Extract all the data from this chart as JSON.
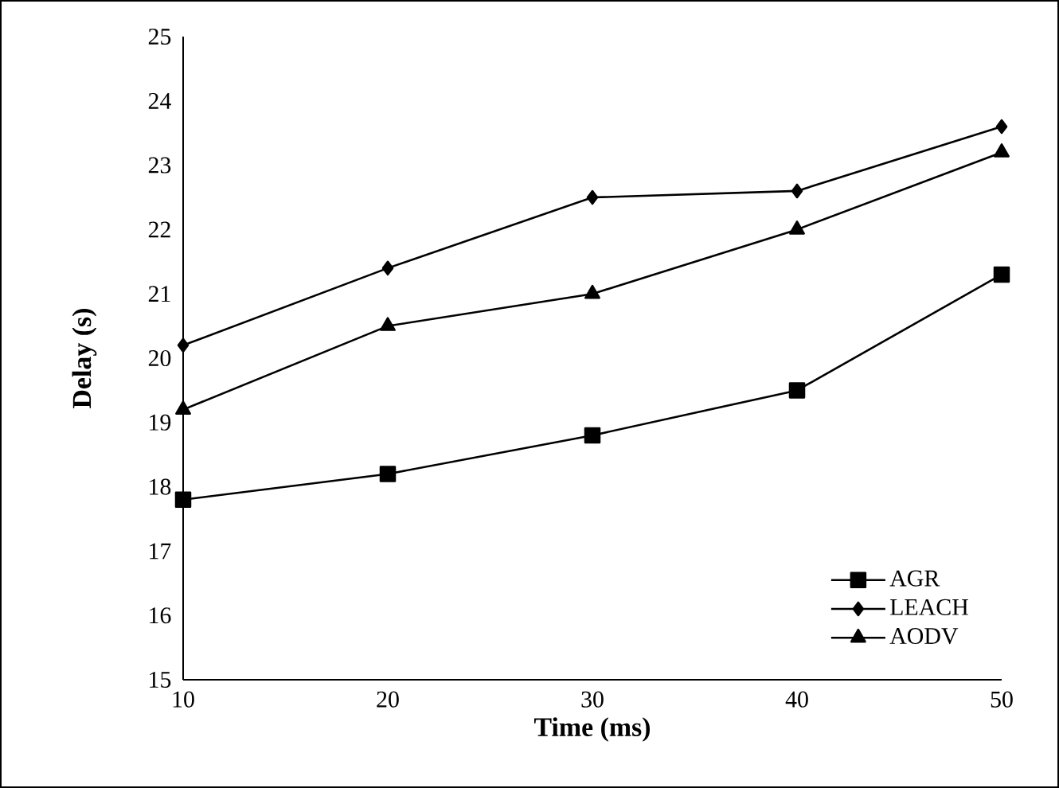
{
  "chart_data": {
    "type": "line",
    "xlabel": "Time (ms)",
    "ylabel": "Delay (s)",
    "x": [
      10,
      20,
      30,
      40,
      50
    ],
    "xlim": [
      10,
      50
    ],
    "xticks": [
      10,
      20,
      30,
      40,
      50
    ],
    "ylim": [
      15,
      25
    ],
    "yticks": [
      15,
      16,
      17,
      18,
      19,
      20,
      21,
      22,
      23,
      24,
      25
    ],
    "grid": false,
    "legend": "bottom right",
    "line_style": "solid",
    "series": [
      {
        "name": "AGR",
        "color": "#000000",
        "marker": "square",
        "values": [
          17.8,
          18.2,
          18.8,
          19.5,
          21.3
        ]
      },
      {
        "name": "LEACH",
        "color": "#000000",
        "marker": "diamond",
        "values": [
          20.2,
          21.4,
          22.5,
          22.6,
          23.6
        ]
      },
      {
        "name": "AODV",
        "color": "#000000",
        "marker": "triangle",
        "values": [
          19.2,
          20.5,
          21.0,
          22.0,
          23.2
        ]
      }
    ]
  }
}
